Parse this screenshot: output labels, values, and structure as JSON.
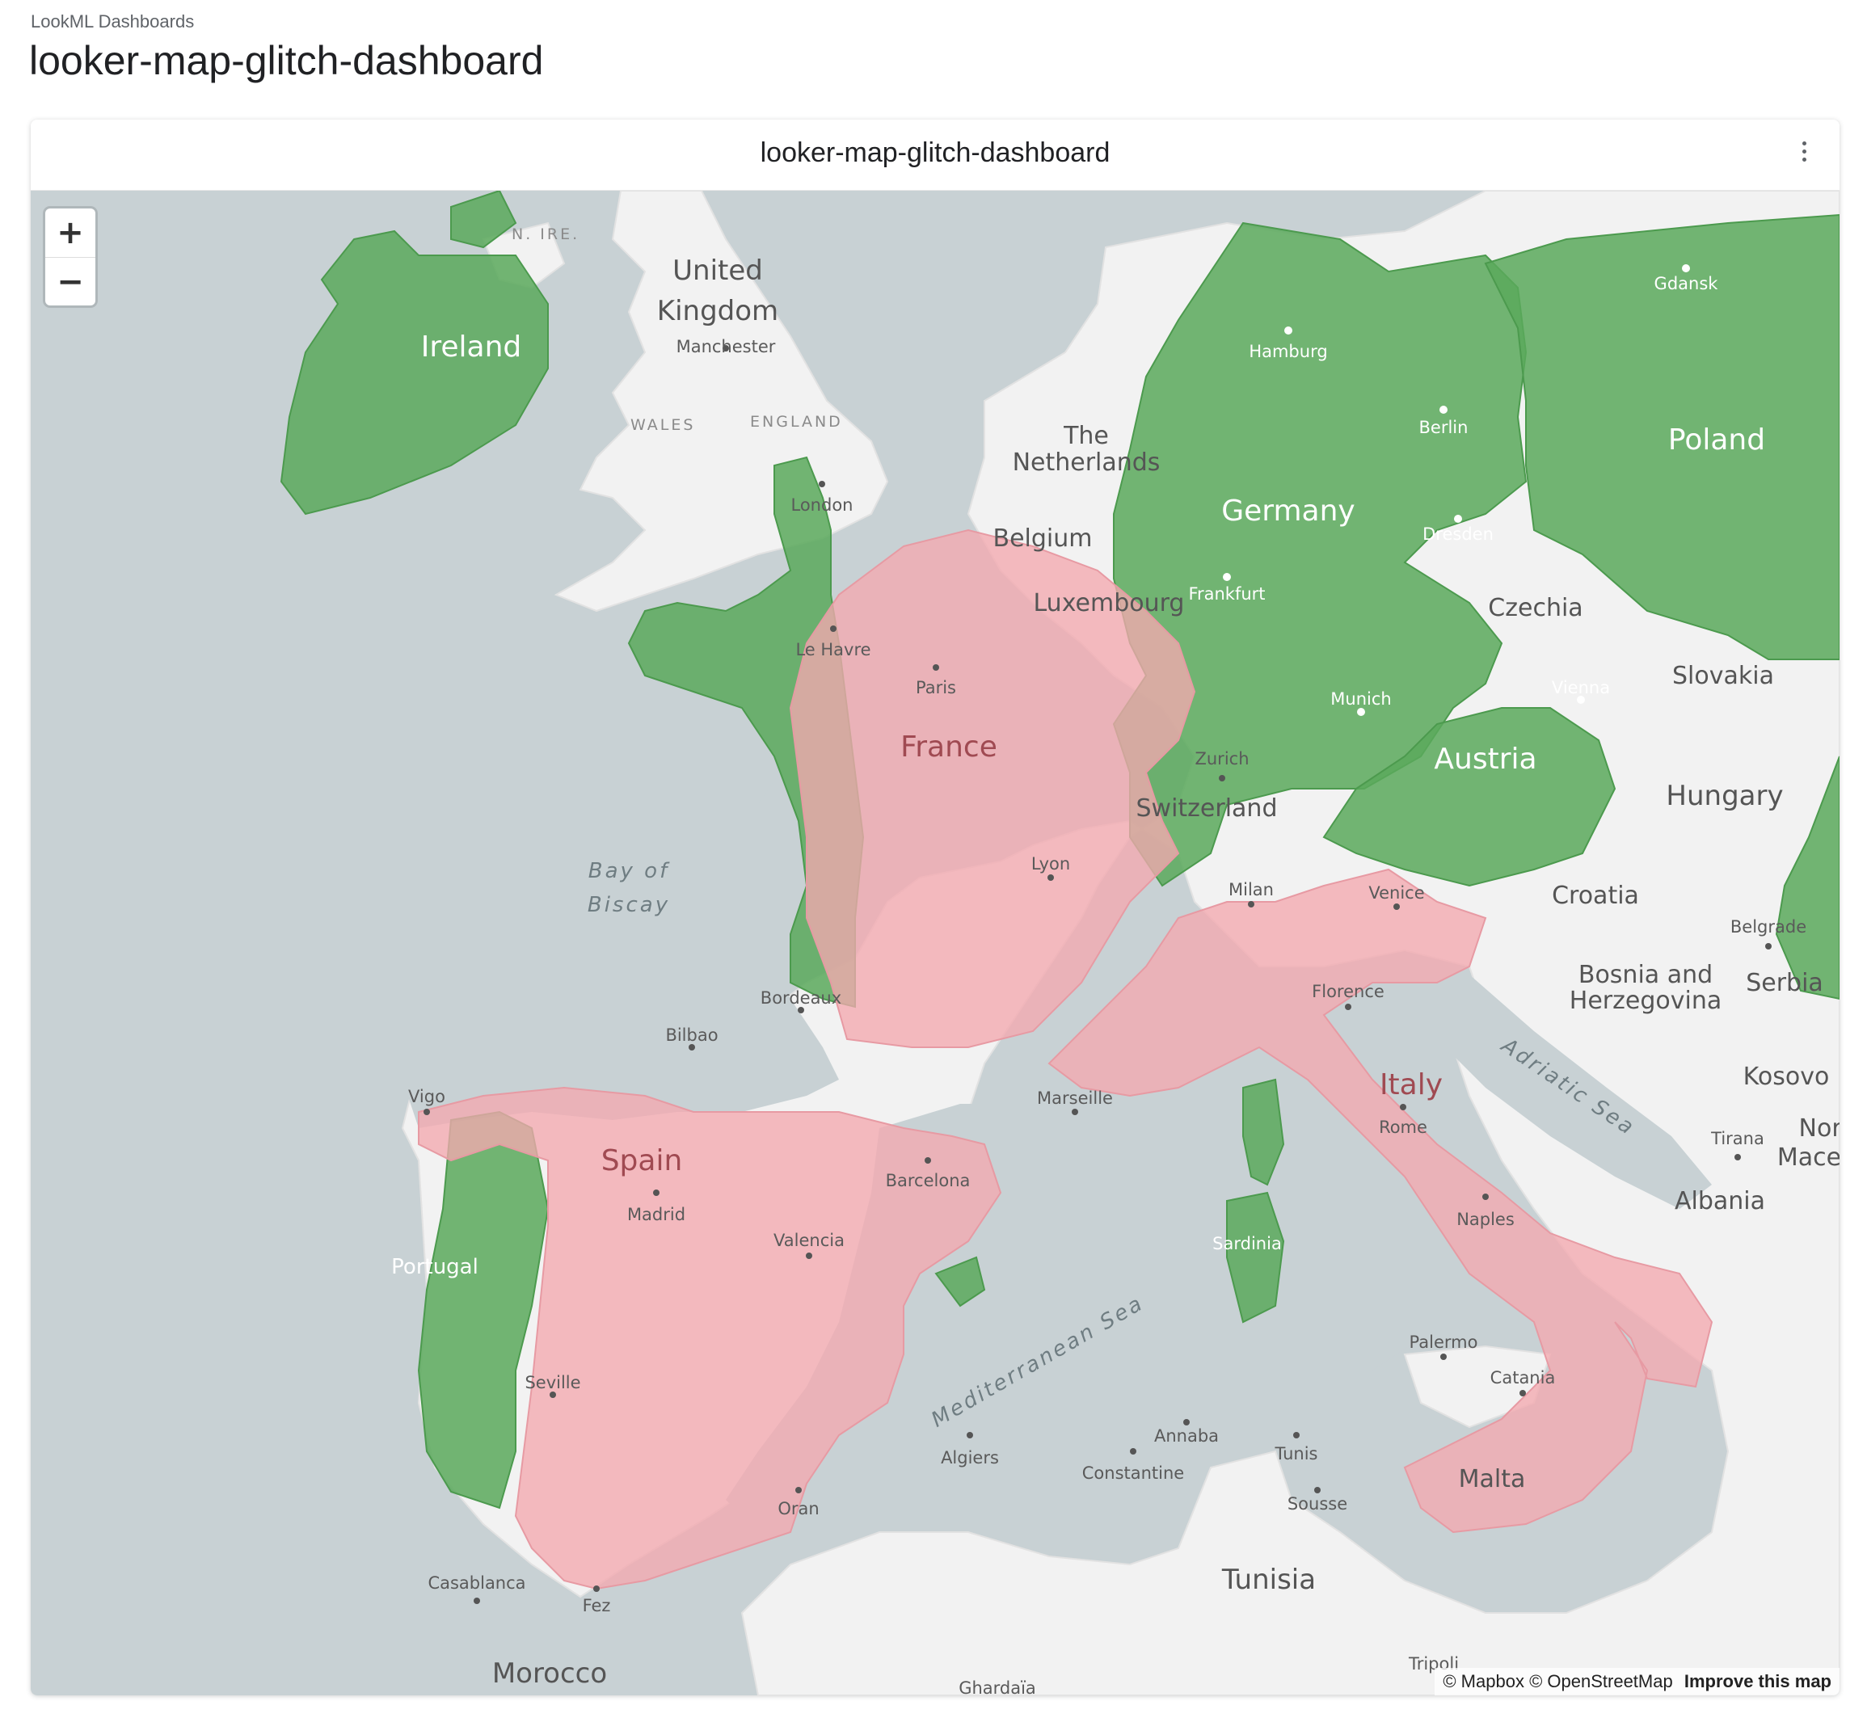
{
  "breadcrumb": "LookML Dashboards",
  "page_title": "looker-map-glitch-dashboard",
  "tile": {
    "title": "looker-map-glitch-dashboard",
    "menu_icon": "kebab-vertical-icon"
  },
  "map": {
    "zoom_in": "+",
    "zoom_out": "−",
    "attribution": {
      "mapbox": "© Mapbox",
      "osm": "© OpenStreetMap",
      "improve": "Improve this map"
    },
    "colors": {
      "water": "#c8d1d4",
      "land": "#f2f2f2",
      "green_region": "#5aa95c",
      "red_region": "#f4a9b0"
    },
    "labels": {
      "united_kingdom_1": "United",
      "united_kingdom_2": "Kingdom",
      "n_ire": "N. IRE.",
      "ireland": "Ireland",
      "manchester": "Manchester",
      "wales": "WALES",
      "england": "ENGLAND",
      "london": "London",
      "netherlands_1": "The",
      "netherlands_2": "Netherlands",
      "belgium": "Belgium",
      "luxembourg": "Luxembourg",
      "hamburg": "Hamburg",
      "berlin": "Berlin",
      "germany": "Germany",
      "dresden": "Dresden",
      "frankfurt": "Frankfurt",
      "poland": "Poland",
      "gdansk": "Gdansk",
      "czechia": "Czechia",
      "slovakia": "Slovakia",
      "vienna": "Vienna",
      "munich": "Munich",
      "austria": "Austria",
      "hungary": "Hungary",
      "zurich": "Zurich",
      "switzerland": "Switzerland",
      "le_havre": "Le Havre",
      "paris": "Paris",
      "france": "France",
      "lyon": "Lyon",
      "bordeaux": "Bordeaux",
      "marseille": "Marseille",
      "bay_of_1": "Bay of",
      "bay_of_2": "Biscay",
      "milan": "Milan",
      "venice": "Venice",
      "croatia": "Croatia",
      "belgrade": "Belgrade",
      "bosnia_1": "Bosnia and",
      "bosnia_2": "Herzegovina",
      "serbia": "Serbia",
      "florence": "Florence",
      "italy": "Italy",
      "rome": "Rome",
      "kosovo": "Kosovo",
      "north_mac_1": "Nort",
      "north_mac_2": "Maced",
      "tirana": "Tirana",
      "albania": "Albania",
      "adriatic": "Adriatic Sea",
      "naples": "Naples",
      "palermo": "Palermo",
      "catania": "Catania",
      "malta": "Malta",
      "sardinia": "Sardinia",
      "mediterranean": "Mediterranean Sea",
      "bilbao": "Bilbao",
      "vigo": "Vigo",
      "spain": "Spain",
      "madrid": "Madrid",
      "barcelona": "Barcelona",
      "valencia": "Valencia",
      "portugal": "Portugal",
      "seville": "Seville",
      "algiers": "Algiers",
      "annaba": "Annaba",
      "tunis": "Tunis",
      "constantine": "Constantine",
      "sousse": "Sousse",
      "oran": "Oran",
      "tunisia": "Tunisia",
      "casablanca": "Casablanca",
      "fez": "Fez",
      "morocco": "Morocco",
      "ghardaia": "Ghardaïa",
      "tripoli": "Tripoli"
    }
  }
}
